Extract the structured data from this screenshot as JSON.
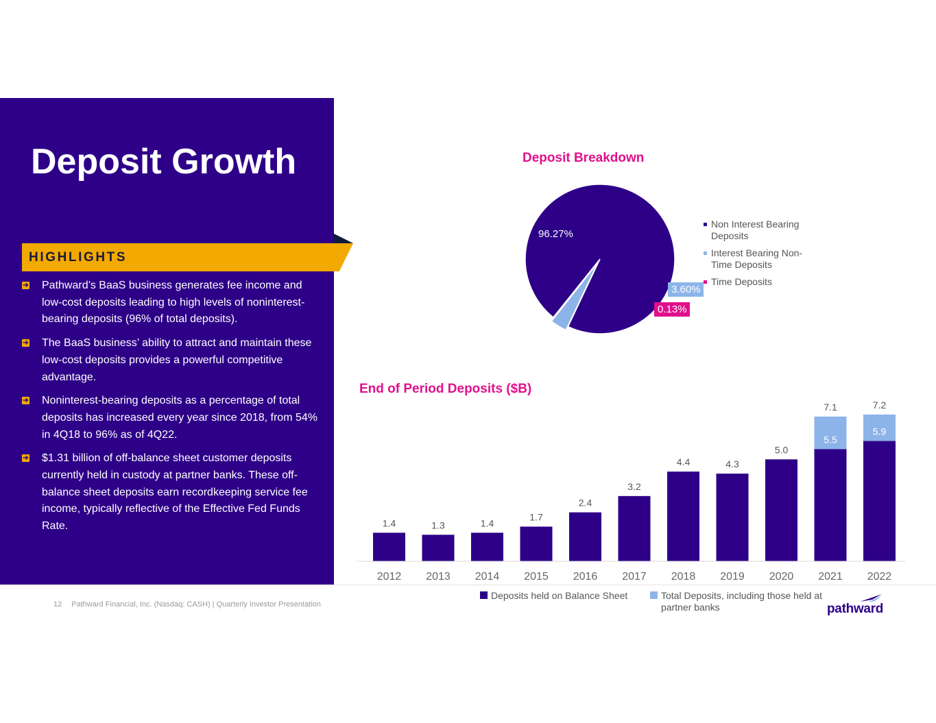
{
  "page": {
    "title": "Deposit Growth",
    "highlights_label": "HIGHLIGHTS",
    "bullets": [
      "Pathward’s BaaS business generates fee income and low-cost deposits leading to high levels of noninterest-bearing deposits (96% of total deposits).",
      "The BaaS business’ ability to attract and maintain these low-cost deposits provides a powerful competitive advantage.",
      "Noninterest-bearing deposits as a percentage of total deposits has increased every year since 2018, from 54% in 4Q18 to 96% as of 4Q22.",
      "$1.31 billion of off-balance sheet customer deposits currently held in custody at partner banks. These off-balance sheet deposits earn recordkeeping service fee income, typically reflective of the Effective Fed Funds Rate."
    ],
    "footer": {
      "page_number": "12",
      "text": "Pathward Financial, Inc. (Nasdaq: CASH) | Quarterly Investor Presentation"
    },
    "logo_text": "pathward",
    "logo_icon": "pathward-swoosh-icon",
    "bullet_icon": "arrow-right-icon"
  },
  "colors": {
    "primary": "#2e0088",
    "accent": "#f2a900",
    "title_magenta": "#e0108c",
    "light_blue": "#8db4e8"
  },
  "chart_data": [
    {
      "type": "pie",
      "title": "Deposit Breakdown",
      "slices": [
        {
          "label": "Non Interest Bearing Deposits",
          "value": 96.27,
          "display": "96.27%",
          "color": "#2e0088"
        },
        {
          "label": "Interest Bearing Non-Time Deposits",
          "value": 3.6,
          "display": "3.60%",
          "color": "#8db4e8"
        },
        {
          "label": "Time Deposits",
          "value": 0.13,
          "display": "0.13%",
          "color": "#e0108c"
        }
      ],
      "legend": "right"
    },
    {
      "type": "bar",
      "title": "End of Period Deposits ($B)",
      "categories": [
        "2012",
        "2013",
        "2014",
        "2015",
        "2016",
        "2017",
        "2018",
        "2019",
        "2020",
        "2021",
        "2022"
      ],
      "series": [
        {
          "name": "Deposits held on Balance Sheet",
          "values": [
            1.4,
            1.3,
            1.4,
            1.7,
            2.4,
            3.2,
            4.4,
            4.3,
            5.0,
            5.5,
            5.9
          ],
          "color": "#2e0088"
        },
        {
          "name": "Total Deposits, including those held at partner banks",
          "values": [
            null,
            null,
            null,
            null,
            null,
            null,
            null,
            null,
            null,
            7.1,
            7.2
          ],
          "color": "#8db4e8"
        }
      ],
      "ylim": [
        0,
        7.7
      ],
      "grid": false,
      "legend": "bottom"
    }
  ]
}
